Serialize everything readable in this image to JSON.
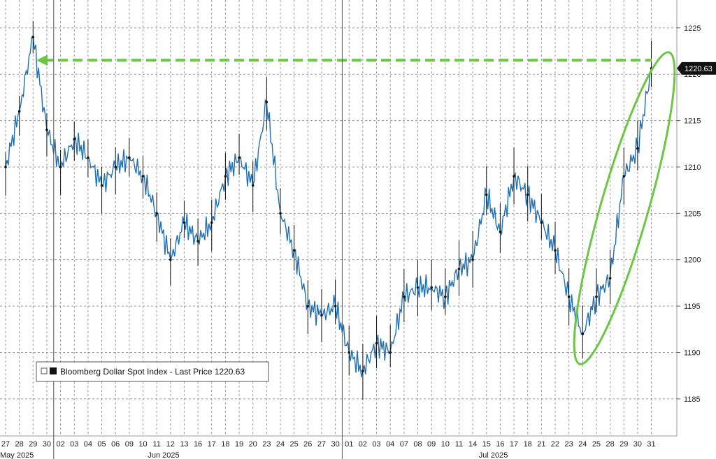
{
  "chart_data": {
    "type": "line",
    "series": [
      {
        "name": "Bloomberg Dollar Spot Index",
        "x": [
          "May 27",
          "May 28",
          "May 29",
          "May 30",
          "Jun 02",
          "Jun 03",
          "Jun 04",
          "Jun 05",
          "Jun 06",
          "Jun 09",
          "Jun 10",
          "Jun 11",
          "Jun 12",
          "Jun 13",
          "Jun 16",
          "Jun 17",
          "Jun 18",
          "Jun 19",
          "Jun 20",
          "Jun 23",
          "Jun 24",
          "Jun 25",
          "Jun 26",
          "Jun 27",
          "Jun 30",
          "Jul 01",
          "Jul 02",
          "Jul 03",
          "Jul 04",
          "Jul 07",
          "Jul 08",
          "Jul 09",
          "Jul 10",
          "Jul 11",
          "Jul 14",
          "Jul 15",
          "Jul 16",
          "Jul 17",
          "Jul 18",
          "Jul 21",
          "Jul 22",
          "Jul 23",
          "Jul 24",
          "Jul 25",
          "Jul 28",
          "Jul 29",
          "Jul 30",
          "Jul 31"
        ],
        "values": [
          1210,
          1216,
          1224,
          1214,
          1210,
          1213,
          1211,
          1208,
          1210,
          1211,
          1209,
          1205,
          1200,
          1204,
          1202,
          1204,
          1209,
          1211,
          1208,
          1217,
          1205,
          1201,
          1195,
          1194,
          1195,
          1190,
          1188,
          1191,
          1190,
          1196,
          1197,
          1197,
          1196,
          1199,
          1200,
          1207,
          1203,
          1209,
          1207,
          1204,
          1201,
          1196,
          1192,
          1196,
          1198,
          1209,
          1212,
          1220.63
        ]
      }
    ],
    "yticks": [
      1185,
      1190,
      1195,
      1200,
      1205,
      1210,
      1215,
      1220,
      1225
    ],
    "ylim": [
      1181,
      1228
    ],
    "xtick_labels": [
      "27",
      "28",
      "29",
      "30",
      "02",
      "03",
      "04",
      "05",
      "06",
      "09",
      "10",
      "11",
      "12",
      "13",
      "16",
      "17",
      "18",
      "19",
      "20",
      "23",
      "24",
      "25",
      "26",
      "27",
      "30",
      "01",
      "02",
      "03",
      "04",
      "07",
      "08",
      "09",
      "10",
      "11",
      "14",
      "15",
      "16",
      "17",
      "18",
      "21",
      "22",
      "23",
      "24",
      "25",
      "28",
      "29",
      "30",
      "31"
    ],
    "month_labels": [
      "May 2025",
      "Jun 2025",
      "Jul 2025"
    ],
    "legend": "Bloomberg Dollar Spot Index - Last Price 1220.63",
    "last_price_label": "1220.63",
    "annotation_arrow": {
      "from_value": 1221.5,
      "to_value": 1221.5,
      "color": "#6cc644"
    },
    "annotation_ellipse_color": "#6cc644",
    "grid": true,
    "axis_position": "right",
    "line_color": "#1f6fb5",
    "candle_color": "#111111"
  }
}
